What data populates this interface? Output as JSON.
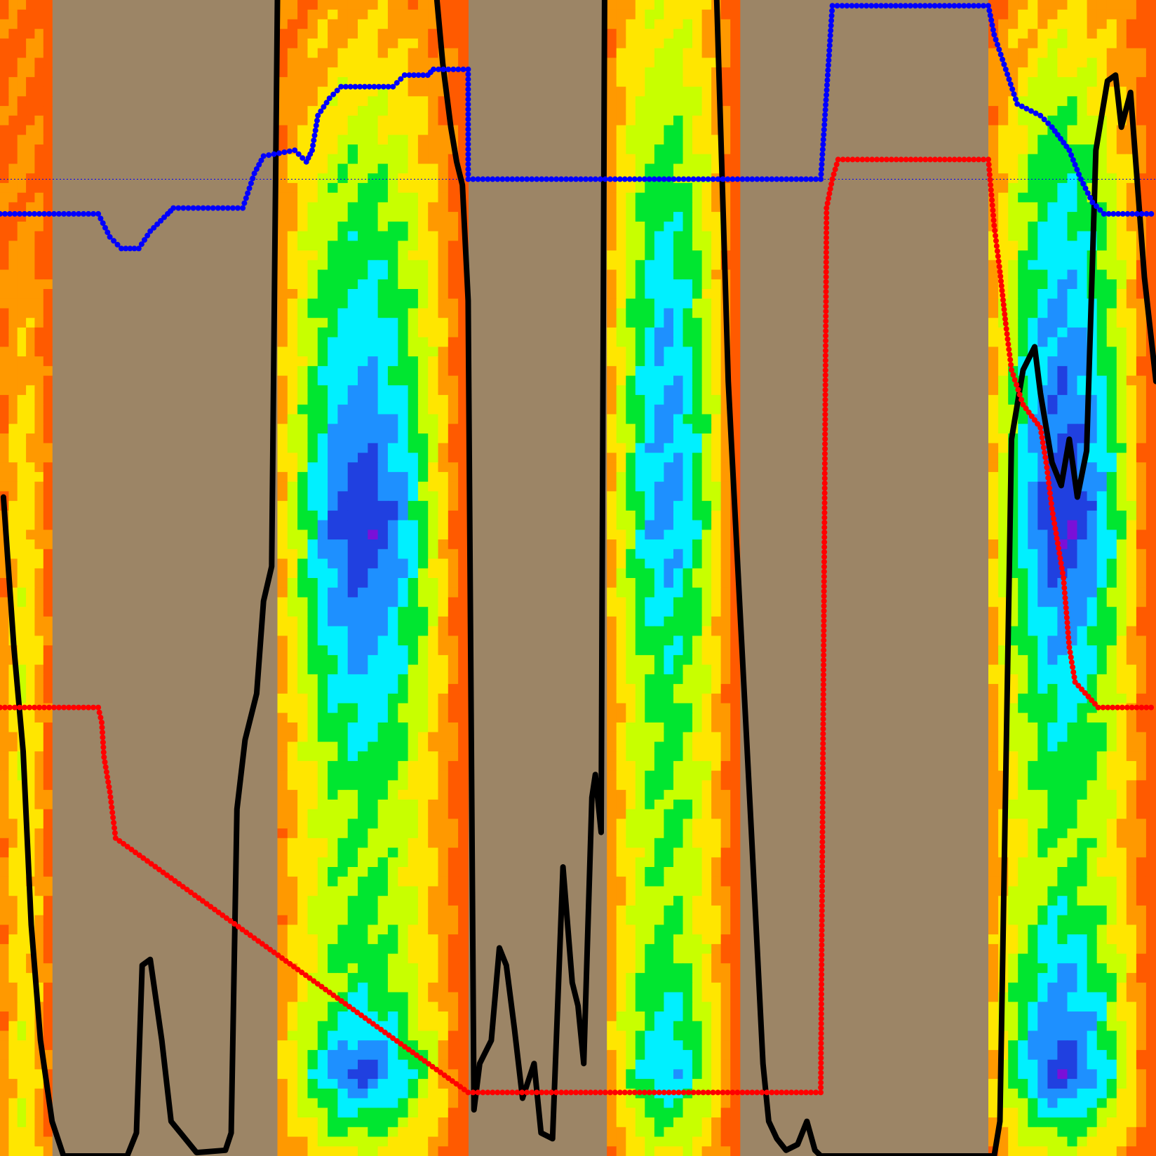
{
  "chart_data": {
    "type": "heatmap",
    "title": "",
    "xlabel": "",
    "ylabel": "",
    "background_color": "#9c8566",
    "x_range": [
      0,
      1
    ],
    "y_range": [
      0,
      1
    ],
    "grid": false,
    "legend": "none",
    "colorscale": [
      "#ff5a00",
      "#ff9900",
      "#ffe600",
      "#c8ff00",
      "#00e630",
      "#00f0ff",
      "#1e90ff",
      "#2040e0",
      "#7a10d8"
    ],
    "bands": [
      {
        "name": "",
        "x_range": [
          0.0,
          0.045
        ],
        "intensity_profile": [
          [
            0.0,
            0.05
          ],
          [
            0.2,
            0.1
          ],
          [
            0.4,
            0.25
          ],
          [
            0.6,
            0.3
          ],
          [
            0.8,
            0.25
          ],
          [
            1.0,
            0.3
          ]
        ]
      },
      {
        "name": "",
        "x_range": [
          0.24,
          0.405
        ],
        "intensity_profile": [
          [
            0.0,
            0.15
          ],
          [
            0.15,
            0.45
          ],
          [
            0.35,
            0.75
          ],
          [
            0.45,
            0.95
          ],
          [
            0.6,
            0.65
          ],
          [
            0.7,
            0.45
          ],
          [
            0.85,
            0.5
          ],
          [
            0.93,
            0.85
          ],
          [
            1.0,
            0.3
          ]
        ]
      },
      {
        "name": "",
        "x_range": [
          0.525,
          0.64
        ],
        "intensity_profile": [
          [
            0.0,
            0.3
          ],
          [
            0.15,
            0.5
          ],
          [
            0.3,
            0.7
          ],
          [
            0.45,
            0.75
          ],
          [
            0.6,
            0.5
          ],
          [
            0.8,
            0.45
          ],
          [
            0.93,
            0.7
          ],
          [
            1.0,
            0.3
          ]
        ]
      },
      {
        "name": "",
        "x_range": [
          0.855,
          1.0
        ],
        "intensity_profile": [
          [
            0.0,
            0.2
          ],
          [
            0.15,
            0.55
          ],
          [
            0.3,
            0.75
          ],
          [
            0.45,
            0.95
          ],
          [
            0.6,
            0.6
          ],
          [
            0.75,
            0.45
          ],
          [
            0.93,
            0.9
          ],
          [
            1.0,
            0.3
          ]
        ]
      }
    ],
    "series": [
      {
        "name": "",
        "color": "#000000",
        "style": "line",
        "points": [
          [
            0.003,
            0.43
          ],
          [
            0.012,
            0.56
          ],
          [
            0.02,
            0.65
          ],
          [
            0.027,
            0.8
          ],
          [
            0.035,
            0.9
          ],
          [
            0.045,
            0.97
          ],
          [
            0.055,
            1.0
          ],
          [
            0.11,
            1.0
          ],
          [
            0.118,
            0.98
          ],
          [
            0.123,
            0.835
          ],
          [
            0.13,
            0.83
          ],
          [
            0.14,
            0.9
          ],
          [
            0.148,
            0.97
          ],
          [
            0.17,
            0.997
          ],
          [
            0.195,
            0.995
          ],
          [
            0.2,
            0.98
          ],
          [
            0.205,
            0.7
          ],
          [
            0.212,
            0.64
          ],
          [
            0.222,
            0.6
          ],
          [
            0.228,
            0.52
          ],
          [
            0.235,
            0.49
          ],
          [
            0.24,
            0.0
          ]
        ]
      },
      {
        "name": "",
        "color": "#000000",
        "style": "line",
        "points": [
          [
            0.378,
            0.0
          ],
          [
            0.383,
            0.055
          ],
          [
            0.39,
            0.11
          ],
          [
            0.395,
            0.14
          ],
          [
            0.4,
            0.16
          ],
          [
            0.405,
            0.26
          ],
          [
            0.41,
            0.96
          ],
          [
            0.415,
            0.92
          ],
          [
            0.425,
            0.9
          ],
          [
            0.432,
            0.82
          ],
          [
            0.438,
            0.835
          ],
          [
            0.445,
            0.89
          ],
          [
            0.452,
            0.95
          ],
          [
            0.462,
            0.92
          ],
          [
            0.468,
            0.98
          ],
          [
            0.478,
            0.985
          ],
          [
            0.487,
            0.75
          ],
          [
            0.495,
            0.85
          ],
          [
            0.5,
            0.87
          ],
          [
            0.505,
            0.92
          ],
          [
            0.512,
            0.69
          ],
          [
            0.515,
            0.67
          ],
          [
            0.52,
            0.72
          ],
          [
            0.523,
            0.0
          ]
        ]
      },
      {
        "name": "",
        "color": "#000000",
        "style": "line",
        "points": [
          [
            0.62,
            0.0
          ],
          [
            0.63,
            0.33
          ],
          [
            0.65,
            0.72
          ],
          [
            0.66,
            0.92
          ],
          [
            0.665,
            0.97
          ],
          [
            0.672,
            0.985
          ],
          [
            0.68,
            0.995
          ],
          [
            0.69,
            0.99
          ],
          [
            0.698,
            0.97
          ],
          [
            0.705,
            0.995
          ],
          [
            0.71,
            1.0
          ],
          [
            0.86,
            1.0
          ],
          [
            0.865,
            0.97
          ],
          [
            0.875,
            0.38
          ],
          [
            0.885,
            0.32
          ],
          [
            0.895,
            0.3
          ],
          [
            0.9,
            0.34
          ],
          [
            0.91,
            0.4
          ],
          [
            0.918,
            0.42
          ],
          [
            0.925,
            0.38
          ],
          [
            0.932,
            0.43
          ],
          [
            0.94,
            0.39
          ],
          [
            0.948,
            0.13
          ],
          [
            0.958,
            0.07
          ],
          [
            0.965,
            0.065
          ],
          [
            0.97,
            0.11
          ],
          [
            0.978,
            0.08
          ],
          [
            0.99,
            0.24
          ],
          [
            1.0,
            0.33
          ]
        ]
      },
      {
        "name": "",
        "color": "#0000ff",
        "style": "dots",
        "points": [
          [
            0.0,
            0.185
          ],
          [
            0.085,
            0.185
          ],
          [
            0.095,
            0.205
          ],
          [
            0.105,
            0.215
          ],
          [
            0.12,
            0.215
          ],
          [
            0.13,
            0.2
          ],
          [
            0.145,
            0.185
          ],
          [
            0.15,
            0.18
          ],
          [
            0.21,
            0.18
          ],
          [
            0.22,
            0.15
          ],
          [
            0.228,
            0.135
          ],
          [
            0.255,
            0.13
          ],
          [
            0.265,
            0.14
          ],
          [
            0.27,
            0.13
          ],
          [
            0.275,
            0.1
          ],
          [
            0.285,
            0.085
          ],
          [
            0.295,
            0.075
          ],
          [
            0.34,
            0.075
          ],
          [
            0.35,
            0.065
          ],
          [
            0.37,
            0.065
          ],
          [
            0.375,
            0.06
          ],
          [
            0.405,
            0.06
          ],
          [
            0.405,
            0.155
          ],
          [
            0.71,
            0.155
          ],
          [
            0.72,
            0.005
          ],
          [
            0.855,
            0.005
          ],
          [
            0.86,
            0.03
          ],
          [
            0.87,
            0.06
          ],
          [
            0.88,
            0.09
          ],
          [
            0.9,
            0.1
          ],
          [
            0.91,
            0.11
          ],
          [
            0.925,
            0.13
          ],
          [
            0.935,
            0.155
          ],
          [
            0.945,
            0.175
          ],
          [
            0.955,
            0.185
          ],
          [
            1.0,
            0.185
          ]
        ]
      },
      {
        "name": "",
        "color": "#ff0000",
        "style": "dots",
        "points": [
          [
            0.0,
            0.612
          ],
          [
            0.085,
            0.612
          ],
          [
            0.088,
            0.625
          ],
          [
            0.09,
            0.655
          ],
          [
            0.095,
            0.685
          ],
          [
            0.1,
            0.725
          ],
          [
            0.405,
            0.945
          ],
          [
            0.71,
            0.945
          ],
          [
            0.715,
            0.18
          ],
          [
            0.72,
            0.155
          ],
          [
            0.725,
            0.138
          ],
          [
            0.855,
            0.138
          ],
          [
            0.86,
            0.195
          ],
          [
            0.865,
            0.235
          ],
          [
            0.87,
            0.28
          ],
          [
            0.875,
            0.32
          ],
          [
            0.885,
            0.35
          ],
          [
            0.9,
            0.37
          ],
          [
            0.905,
            0.4
          ],
          [
            0.91,
            0.44
          ],
          [
            0.92,
            0.5
          ],
          [
            0.925,
            0.56
          ],
          [
            0.93,
            0.59
          ],
          [
            0.95,
            0.612
          ],
          [
            1.0,
            0.612
          ]
        ]
      }
    ],
    "reference_line": {
      "y": 0.155,
      "color": "#0000ff",
      "style": "dotted"
    }
  }
}
